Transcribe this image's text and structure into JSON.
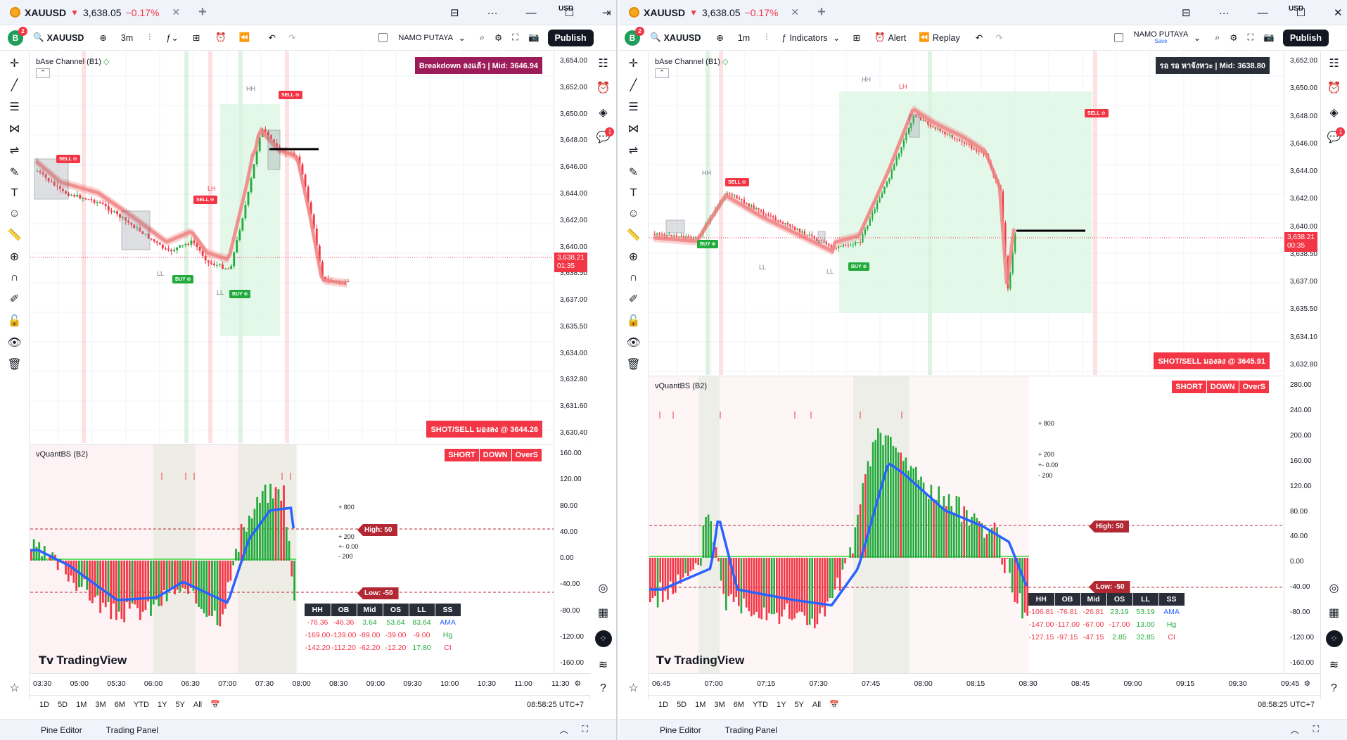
{
  "left": {
    "tab": {
      "symbol": "XAUUSD",
      "price": "3,638.05",
      "change": "−0.17%"
    },
    "toolbar": {
      "avatar": "B",
      "avatar_badge": "2",
      "symbol": "XAUUSD",
      "interval": "3m",
      "user": "NAMO PUTAYA",
      "publish": "Publish"
    },
    "main_indicator": "bAse Channel (B1)",
    "status_label": "Breakdown ลงแล้ว | Mid: 3646.94",
    "shot_label": "SHOT/SELL มองลง @ 3644.26",
    "currency": "USD",
    "price_axis": [
      "3,654.00",
      "3,652.00",
      "3,650.00",
      "3,648.00",
      "3,646.00",
      "3,644.00",
      "3,642.00",
      "3,640.00",
      "3,638.50",
      "3,637.00",
      "3,635.50",
      "3,634.00",
      "3,632.80",
      "3,631.60",
      "3,630.40"
    ],
    "last_price": "3,638.21",
    "countdown": "01:35",
    "signals": [
      {
        "t": "SELL"
      },
      {
        "t": "SELL"
      },
      {
        "t": "SELL"
      },
      {
        "t": "BUY"
      },
      {
        "t": "BUY"
      }
    ],
    "point_labels": [
      "HH",
      "LH",
      "LL",
      "LL"
    ],
    "osc_title": "vQuantBS (B2)",
    "osc_buttons": [
      "SHORT",
      "DOWN",
      "OverS"
    ],
    "osc_axis": [
      "160.00",
      "120.00",
      "80.00",
      "40.00",
      "0.00",
      "-40.00",
      "-80.00",
      "-120.00",
      "-160.00"
    ],
    "high_label": "High: 50",
    "low_label": "Low: -50",
    "levels": [
      "+ 800",
      "+ 200",
      "+- 0.00",
      "- 200"
    ],
    "table": {
      "headers": [
        "HH",
        "OB",
        "Mid",
        "OS",
        "LL",
        "SS"
      ],
      "rows": [
        [
          "-76.36",
          "-46.36",
          "3.64",
          "53.64",
          "83.64",
          "AMA"
        ],
        [
          "-169.00",
          "-139.00",
          "-89.00",
          "-39.00",
          "-9.00",
          "Hg"
        ],
        [
          "-142.20",
          "-112.20",
          "-62.20",
          "-12.20",
          "17.80",
          "CI"
        ]
      ]
    },
    "logo": "TradingView",
    "time_axis": [
      "03:30",
      "05:00",
      "05:30",
      "06:00",
      "06:30",
      "07:00",
      "07:30",
      "08:00",
      "08:30",
      "09:00",
      "09:30",
      "10:00",
      "10:30",
      "11:00",
      "11:30"
    ],
    "ranges": [
      "1D",
      "5D",
      "1M",
      "3M",
      "6M",
      "YTD",
      "1Y",
      "5Y",
      "All"
    ],
    "clock": "08:58:25 UTC+7",
    "footer": [
      "Pine Editor",
      "Trading Panel"
    ],
    "alert_badge": "1"
  },
  "right": {
    "tab": {
      "symbol": "XAUUSD",
      "price": "3,638.05",
      "change": "−0.17%"
    },
    "toolbar": {
      "avatar": "B",
      "avatar_badge": "2",
      "symbol": "XAUUSD",
      "interval": "1m",
      "indicators": "Indicators",
      "alert": "Alert",
      "replay": "Replay",
      "user": "NAMO PUTAYA",
      "save": "Save",
      "publish": "Publish"
    },
    "main_indicator": "bAse Channel (B1)",
    "status_label": "รอ รอ หาจังหวะ | Mid: 3638.80",
    "shot_label": "SHOT/SELL มองลง @ 3645.91",
    "currency": "USD",
    "price_axis": [
      "3,652.00",
      "3,650.00",
      "3,648.00",
      "3,646.00",
      "3,644.00",
      "3,642.00",
      "3,640.00",
      "3,638.50",
      "3,637.00",
      "3,635.50",
      "3,634.10",
      "3,632.80"
    ],
    "last_price": "3,638.21",
    "countdown": "00:35",
    "signals": [
      {
        "t": "SELL"
      },
      {
        "t": "SELL"
      },
      {
        "t": "BUY"
      },
      {
        "t": "BUY"
      }
    ],
    "point_labels": [
      "HH",
      "LH",
      "HH",
      "LL",
      "LL"
    ],
    "osc_title": "vQuantBS (B2)",
    "osc_buttons": [
      "SHORT",
      "DOWN",
      "OverS"
    ],
    "osc_axis": [
      "280.00",
      "240.00",
      "200.00",
      "160.00",
      "120.00",
      "80.00",
      "40.00",
      "0.00",
      "-40.00",
      "-80.00",
      "-120.00",
      "-160.00"
    ],
    "high_label": "High: 50",
    "low_label": "Low: -50",
    "levels": [
      "+ 800",
      "+ 200",
      "+- 0.00",
      "- 200"
    ],
    "table": {
      "headers": [
        "HH",
        "OB",
        "Mid",
        "OS",
        "LL",
        "SS"
      ],
      "rows": [
        [
          "-106.81",
          "-76.81",
          "-26.81",
          "23.19",
          "53.19",
          "AMA"
        ],
        [
          "-147.00",
          "-117.00",
          "-67.00",
          "-17.00",
          "13.00",
          "Hg"
        ],
        [
          "-127.15",
          "-97.15",
          "-47.15",
          "2.85",
          "32.85",
          "CI"
        ]
      ]
    },
    "logo": "TradingView",
    "time_axis": [
      "06:45",
      "07:00",
      "07:15",
      "07:30",
      "07:45",
      "08:00",
      "08:15",
      "08:30",
      "08:45",
      "09:00",
      "09:15",
      "09:30",
      "09:45"
    ],
    "ranges": [
      "1D",
      "5D",
      "1M",
      "3M",
      "6M",
      "YTD",
      "1Y",
      "5Y",
      "All"
    ],
    "clock": "08:58:25 UTC+7",
    "footer": [
      "Pine Editor",
      "Trading Panel"
    ],
    "alert_badge": "1"
  },
  "colors": {
    "up": "#22ab3c",
    "down": "#f23645",
    "channel": "#f08080",
    "ama": "#2962ff"
  }
}
